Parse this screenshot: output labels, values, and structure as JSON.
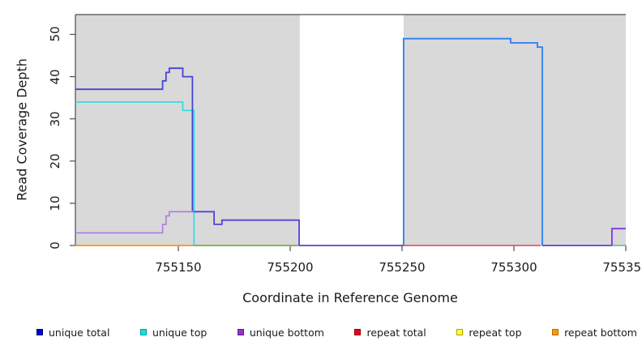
{
  "chart_data": {
    "type": "line",
    "subtype": "step-coverage-plot",
    "title": "",
    "xlabel": "Coordinate in Reference Genome",
    "ylabel": "Read Coverage Depth",
    "xlim": [
      755104,
      755350
    ],
    "ylim": [
      0,
      54.7
    ],
    "grid": false,
    "axis_color": "#4d4d4d",
    "plot_background": "#ffffff",
    "shaded_region_color": "#d9d9d9",
    "shaded_regions": [
      {
        "from": 755104,
        "to": 755204.3
      },
      {
        "from": 755250.7,
        "to": 755350
      }
    ],
    "xticks": [
      {
        "v": 755150,
        "label": "755150"
      },
      {
        "v": 755200,
        "label": "755200"
      },
      {
        "v": 755250,
        "label": "755250"
      },
      {
        "v": 755300,
        "label": "755300"
      },
      {
        "v": 755350,
        "label": "755350"
      }
    ],
    "yticks": [
      {
        "v": 0,
        "label": "0"
      },
      {
        "v": 10,
        "label": "10"
      },
      {
        "v": 20,
        "label": "20"
      },
      {
        "v": 30,
        "label": "30"
      },
      {
        "v": 40,
        "label": "40"
      },
      {
        "v": 50,
        "label": "50"
      }
    ],
    "legend_position": "bottom",
    "legend": [
      {
        "label": "unique total",
        "color": "#0000cc",
        "border": "#000080"
      },
      {
        "label": "unique top",
        "color": "#00e6e6",
        "border": "#009aa8"
      },
      {
        "label": "unique bottom",
        "color": "#9932cc",
        "border": "#5c1f8a"
      },
      {
        "label": "repeat total",
        "color": "#e60026",
        "border": "#990000"
      },
      {
        "label": "repeat top",
        "color": "#ffff33",
        "border": "#b8a800"
      },
      {
        "label": "repeat bottom",
        "color": "#ff9900",
        "border": "#b36b00"
      }
    ],
    "series": [
      {
        "name": "repeat top",
        "color": "#f2e235",
        "width": 1.6,
        "points": [
          [
            755104,
            0
          ],
          [
            755204,
            0
          ]
        ]
      },
      {
        "name": "repeat bottom",
        "color": "#ff9d2e",
        "width": 2.0,
        "points": [
          [
            755104,
            0
          ],
          [
            755204,
            0
          ]
        ]
      },
      {
        "name": "repeat total",
        "color": "#e0435a",
        "width": 1.6,
        "points": [
          [
            755250.7,
            0
          ],
          [
            755312,
            0
          ]
        ]
      },
      {
        "name": "unique top",
        "color": "#25dde8",
        "width": 1.6,
        "points": [
          [
            755104,
            34
          ],
          [
            755152,
            34
          ],
          [
            755152,
            32
          ],
          [
            755157,
            32
          ],
          [
            755157,
            0
          ]
        ]
      },
      {
        "name": "unique total left",
        "color": "#4444d6",
        "width": 1.8,
        "points": [
          [
            755104,
            37
          ],
          [
            755143,
            37
          ],
          [
            755143,
            39
          ],
          [
            755144.5,
            39
          ],
          [
            755144.5,
            41
          ],
          [
            755146,
            41
          ],
          [
            755146,
            42
          ],
          [
            755152,
            42
          ],
          [
            755152,
            40
          ],
          [
            755156.3,
            40
          ],
          [
            755156.3,
            8
          ]
        ]
      },
      {
        "name": "unique total plus unique bottom overlap",
        "color": "#5a3fd8",
        "width": 1.8,
        "points": [
          [
            755156.3,
            8
          ],
          [
            755166,
            8
          ],
          [
            755166,
            5
          ],
          [
            755169.5,
            5
          ],
          [
            755169.5,
            6
          ],
          [
            755204,
            6
          ],
          [
            755204,
            0
          ],
          [
            755250.7,
            0
          ]
        ]
      },
      {
        "name": "unique total right",
        "color": "#2e7df6",
        "width": 1.8,
        "points": [
          [
            755250.7,
            0
          ],
          [
            755250.7,
            49
          ],
          [
            755298.5,
            49
          ],
          [
            755298.5,
            48
          ],
          [
            755310.5,
            48
          ],
          [
            755310.5,
            47
          ],
          [
            755312.7,
            47
          ],
          [
            755312.7,
            0
          ]
        ]
      },
      {
        "name": "unique total plus unique bottom overlap zero",
        "color": "#5a3fd8",
        "width": 1.8,
        "points": [
          [
            755312.7,
            0
          ],
          [
            755343.8,
            0
          ]
        ]
      },
      {
        "name": "unique top zero overlap",
        "color": "#58c06e",
        "width": 1.5,
        "points": [
          [
            755157,
            0
          ],
          [
            755204,
            0
          ]
        ]
      },
      {
        "name": "unique top zero overlap right",
        "color": "#58c06e",
        "width": 1.5,
        "points": [
          [
            755343.8,
            0
          ],
          [
            755350,
            0
          ]
        ]
      },
      {
        "name": "unique bottom left",
        "color": "#ab7ade",
        "width": 1.6,
        "points": [
          [
            755104,
            3
          ],
          [
            755143,
            3
          ],
          [
            755143,
            5
          ],
          [
            755144.5,
            5
          ],
          [
            755144.5,
            7
          ],
          [
            755146,
            7
          ],
          [
            755146,
            8
          ],
          [
            755157,
            8
          ]
        ]
      },
      {
        "name": "unique bottom right",
        "color": "#7a3be0",
        "width": 1.8,
        "points": [
          [
            755343.8,
            0
          ],
          [
            755343.8,
            4
          ],
          [
            755350,
            4
          ]
        ]
      }
    ]
  }
}
